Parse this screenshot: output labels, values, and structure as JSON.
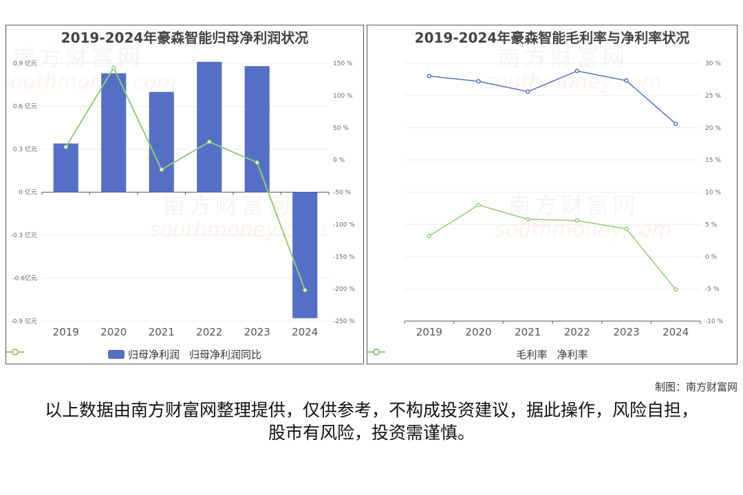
{
  "chart_data": [
    {
      "type": "bar+line",
      "title": "2019-2024年豪森智能归母净利润状况",
      "categories": [
        "2019",
        "2020",
        "2021",
        "2022",
        "2023",
        "2024"
      ],
      "y_left_ticks": [
        "0.9 亿元",
        "0.6 亿元",
        "0.3 亿元",
        "0 亿元",
        "-0.3 亿元",
        "-0.6亿元",
        "-0.9 亿元"
      ],
      "y_left_range": [
        -0.9,
        0.9
      ],
      "y_right_ticks": [
        "150 %",
        "100 %",
        "50 %",
        "0 %",
        "-50 %",
        "-100 %",
        "-150 %",
        "-200 %",
        "-250 %"
      ],
      "y_right_range": [
        -250,
        150
      ],
      "series": [
        {
          "name": "归母净利润",
          "kind": "bar",
          "axis": "left",
          "color": "#5470c6",
          "values": [
            0.34,
            0.83,
            0.7,
            0.91,
            0.88,
            -0.88
          ]
        },
        {
          "name": "归母净利润同比",
          "kind": "line",
          "axis": "right",
          "color": "#91cc75",
          "values": [
            20,
            143,
            -15,
            28,
            -4,
            -202
          ]
        }
      ],
      "legend_position": "bottom"
    },
    {
      "type": "line",
      "title": "2019-2024年豪森智能毛利率与净利率状况",
      "categories": [
        "2019",
        "2020",
        "2021",
        "2022",
        "2023",
        "2024"
      ],
      "y_right_ticks": [
        "30 %",
        "25 %",
        "20 %",
        "15 %",
        "10 %",
        "5 %",
        "0 %",
        "-5 %",
        "-10 %"
      ],
      "y_range": [
        -10,
        30
      ],
      "series": [
        {
          "name": "毛利率",
          "color": "#5470c6",
          "values": [
            28.0,
            27.2,
            25.6,
            28.8,
            27.3,
            20.6
          ]
        },
        {
          "name": "净利率",
          "color": "#91cc75",
          "values": [
            3.2,
            8.0,
            5.8,
            5.6,
            4.3,
            -5.1
          ]
        }
      ],
      "legend_position": "bottom"
    }
  ],
  "watermark": {
    "cn": "南方财富网",
    "en": "southmoney.com"
  },
  "footer": {
    "credit": "制图：南方财富网",
    "disclaimer": "以上数据由南方财富网整理提供，仅供参考，不构成投资建议，据此操作，风险自担，股市有风险，投资需谨慎。"
  }
}
